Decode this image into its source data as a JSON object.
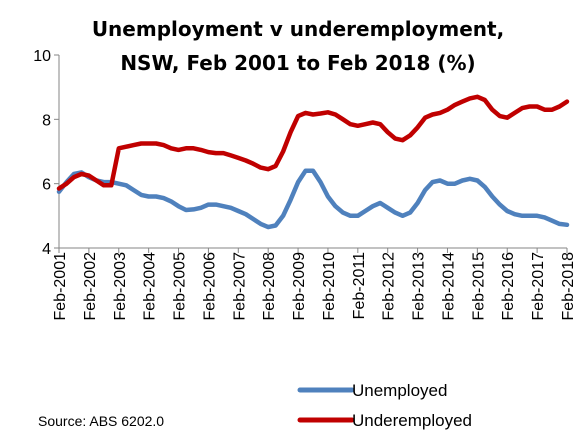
{
  "chart_data": {
    "type": "line",
    "title_lines": [
      "Unemployment v underemployment,",
      "NSW, Feb 2001 to Feb 2018 (%)"
    ],
    "xlabel": "",
    "ylabel": "",
    "ylim": [
      4,
      10
    ],
    "yticks": [
      "4",
      "6",
      "8",
      "10"
    ],
    "x_start_year": 2001,
    "x_end_year": 2018,
    "xticks": [
      "Feb-2001",
      "Feb-2002",
      "Feb-2003",
      "Feb-2004",
      "Feb-2005",
      "Feb-2006",
      "Feb-2007",
      "Feb-2008",
      "Feb-2009",
      "Feb-2010",
      "Feb-2011",
      "Feb-2012",
      "Feb-2013",
      "Feb-2014",
      "Feb-2015",
      "Feb-2016",
      "Feb-2017",
      "Feb-2018"
    ],
    "grid": false,
    "legend_position": "bottom-right",
    "source": "Source: ABS 6202.0",
    "series": [
      {
        "name": "Unemployed",
        "color": "#4F81BD",
        "points": [
          [
            2001.0,
            5.75
          ],
          [
            2001.25,
            6.05
          ],
          [
            2001.5,
            6.3
          ],
          [
            2001.75,
            6.35
          ],
          [
            2002.0,
            6.2
          ],
          [
            2002.25,
            6.1
          ],
          [
            2002.5,
            6.05
          ],
          [
            2002.75,
            6.05
          ],
          [
            2003.0,
            6.0
          ],
          [
            2003.25,
            5.95
          ],
          [
            2003.5,
            5.8
          ],
          [
            2003.75,
            5.65
          ],
          [
            2004.0,
            5.6
          ],
          [
            2004.25,
            5.6
          ],
          [
            2004.5,
            5.55
          ],
          [
            2004.75,
            5.45
          ],
          [
            2005.0,
            5.3
          ],
          [
            2005.25,
            5.18
          ],
          [
            2005.5,
            5.2
          ],
          [
            2005.75,
            5.25
          ],
          [
            2006.0,
            5.35
          ],
          [
            2006.25,
            5.35
          ],
          [
            2006.5,
            5.3
          ],
          [
            2006.75,
            5.25
          ],
          [
            2007.0,
            5.15
          ],
          [
            2007.25,
            5.05
          ],
          [
            2007.5,
            4.9
          ],
          [
            2007.75,
            4.75
          ],
          [
            2008.0,
            4.65
          ],
          [
            2008.25,
            4.7
          ],
          [
            2008.5,
            5.0
          ],
          [
            2008.75,
            5.5
          ],
          [
            2009.0,
            6.05
          ],
          [
            2009.25,
            6.4
          ],
          [
            2009.5,
            6.4
          ],
          [
            2009.75,
            6.05
          ],
          [
            2010.0,
            5.6
          ],
          [
            2010.25,
            5.3
          ],
          [
            2010.5,
            5.1
          ],
          [
            2010.75,
            5.0
          ],
          [
            2011.0,
            5.0
          ],
          [
            2011.25,
            5.15
          ],
          [
            2011.5,
            5.3
          ],
          [
            2011.75,
            5.4
          ],
          [
            2012.0,
            5.25
          ],
          [
            2012.25,
            5.1
          ],
          [
            2012.5,
            5.0
          ],
          [
            2012.75,
            5.1
          ],
          [
            2013.0,
            5.4
          ],
          [
            2013.25,
            5.8
          ],
          [
            2013.5,
            6.05
          ],
          [
            2013.75,
            6.1
          ],
          [
            2014.0,
            6.0
          ],
          [
            2014.25,
            6.0
          ],
          [
            2014.5,
            6.1
          ],
          [
            2014.75,
            6.15
          ],
          [
            2015.0,
            6.1
          ],
          [
            2015.25,
            5.9
          ],
          [
            2015.5,
            5.6
          ],
          [
            2015.75,
            5.35
          ],
          [
            2016.0,
            5.15
          ],
          [
            2016.25,
            5.05
          ],
          [
            2016.5,
            5.0
          ],
          [
            2016.75,
            5.0
          ],
          [
            2017.0,
            5.0
          ],
          [
            2017.25,
            4.95
          ],
          [
            2017.5,
            4.85
          ],
          [
            2017.75,
            4.75
          ],
          [
            2018.0,
            4.72
          ]
        ]
      },
      {
        "name": "Underemployed",
        "color": "#C00000",
        "points": [
          [
            2001.0,
            5.85
          ],
          [
            2001.25,
            6.0
          ],
          [
            2001.5,
            6.2
          ],
          [
            2001.75,
            6.3
          ],
          [
            2002.0,
            6.25
          ],
          [
            2002.25,
            6.1
          ],
          [
            2002.5,
            5.95
          ],
          [
            2002.75,
            5.95
          ],
          [
            2003.0,
            7.1
          ],
          [
            2003.25,
            7.15
          ],
          [
            2003.5,
            7.2
          ],
          [
            2003.75,
            7.25
          ],
          [
            2004.0,
            7.25
          ],
          [
            2004.25,
            7.25
          ],
          [
            2004.5,
            7.2
          ],
          [
            2004.75,
            7.1
          ],
          [
            2005.0,
            7.05
          ],
          [
            2005.25,
            7.1
          ],
          [
            2005.5,
            7.1
          ],
          [
            2005.75,
            7.05
          ],
          [
            2006.0,
            6.98
          ],
          [
            2006.25,
            6.95
          ],
          [
            2006.5,
            6.95
          ],
          [
            2006.75,
            6.88
          ],
          [
            2007.0,
            6.8
          ],
          [
            2007.25,
            6.72
          ],
          [
            2007.5,
            6.62
          ],
          [
            2007.75,
            6.5
          ],
          [
            2008.0,
            6.45
          ],
          [
            2008.25,
            6.55
          ],
          [
            2008.5,
            7.0
          ],
          [
            2008.75,
            7.6
          ],
          [
            2009.0,
            8.1
          ],
          [
            2009.25,
            8.2
          ],
          [
            2009.5,
            8.15
          ],
          [
            2009.75,
            8.18
          ],
          [
            2010.0,
            8.22
          ],
          [
            2010.25,
            8.15
          ],
          [
            2010.5,
            8.0
          ],
          [
            2010.75,
            7.85
          ],
          [
            2011.0,
            7.8
          ],
          [
            2011.25,
            7.85
          ],
          [
            2011.5,
            7.9
          ],
          [
            2011.75,
            7.85
          ],
          [
            2012.0,
            7.6
          ],
          [
            2012.25,
            7.4
          ],
          [
            2012.5,
            7.35
          ],
          [
            2012.75,
            7.5
          ],
          [
            2013.0,
            7.75
          ],
          [
            2013.25,
            8.05
          ],
          [
            2013.5,
            8.15
          ],
          [
            2013.75,
            8.2
          ],
          [
            2014.0,
            8.3
          ],
          [
            2014.25,
            8.45
          ],
          [
            2014.5,
            8.55
          ],
          [
            2014.75,
            8.65
          ],
          [
            2015.0,
            8.7
          ],
          [
            2015.25,
            8.6
          ],
          [
            2015.5,
            8.3
          ],
          [
            2015.75,
            8.1
          ],
          [
            2016.0,
            8.05
          ],
          [
            2016.25,
            8.2
          ],
          [
            2016.5,
            8.35
          ],
          [
            2016.75,
            8.4
          ],
          [
            2017.0,
            8.4
          ],
          [
            2017.25,
            8.3
          ],
          [
            2017.5,
            8.3
          ],
          [
            2017.75,
            8.4
          ],
          [
            2018.0,
            8.55
          ]
        ]
      }
    ]
  }
}
